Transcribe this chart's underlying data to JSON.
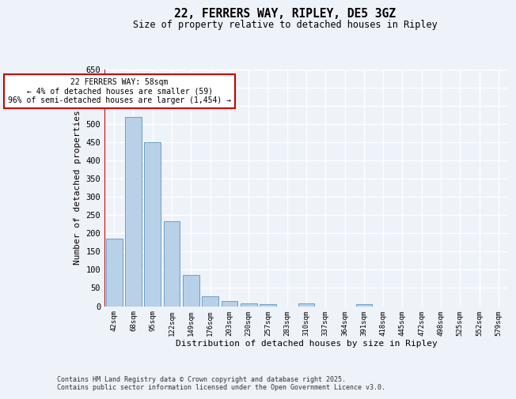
{
  "title_line1": "22, FERRERS WAY, RIPLEY, DE5 3GZ",
  "title_line2": "Size of property relative to detached houses in Ripley",
  "xlabel": "Distribution of detached houses by size in Ripley",
  "ylabel": "Number of detached properties",
  "categories": [
    "42sqm",
    "68sqm",
    "95sqm",
    "122sqm",
    "149sqm",
    "176sqm",
    "203sqm",
    "230sqm",
    "257sqm",
    "283sqm",
    "310sqm",
    "337sqm",
    "364sqm",
    "391sqm",
    "418sqm",
    "445sqm",
    "472sqm",
    "498sqm",
    "525sqm",
    "552sqm",
    "579sqm"
  ],
  "values": [
    185,
    520,
    450,
    232,
    86,
    28,
    15,
    8,
    5,
    0,
    8,
    0,
    0,
    6,
    0,
    0,
    0,
    0,
    0,
    0,
    0
  ],
  "bar_color": "#b8d0e8",
  "bar_edge_color": "#6aa0c7",
  "ylim": [
    0,
    650
  ],
  "yticks": [
    0,
    50,
    100,
    150,
    200,
    250,
    300,
    350,
    400,
    450,
    500,
    550,
    600,
    650
  ],
  "annotation_text": "22 FERRERS WAY: 58sqm\n← 4% of detached houses are smaller (59)\n96% of semi-detached houses are larger (1,454) →",
  "annotation_box_color": "#ffffff",
  "annotation_box_edge_color": "#cc0000",
  "vline_color": "#cc0000",
  "background_color": "#eef2f9",
  "grid_color": "#ffffff",
  "footer_line1": "Contains HM Land Registry data © Crown copyright and database right 2025.",
  "footer_line2": "Contains public sector information licensed under the Open Government Licence v3.0."
}
